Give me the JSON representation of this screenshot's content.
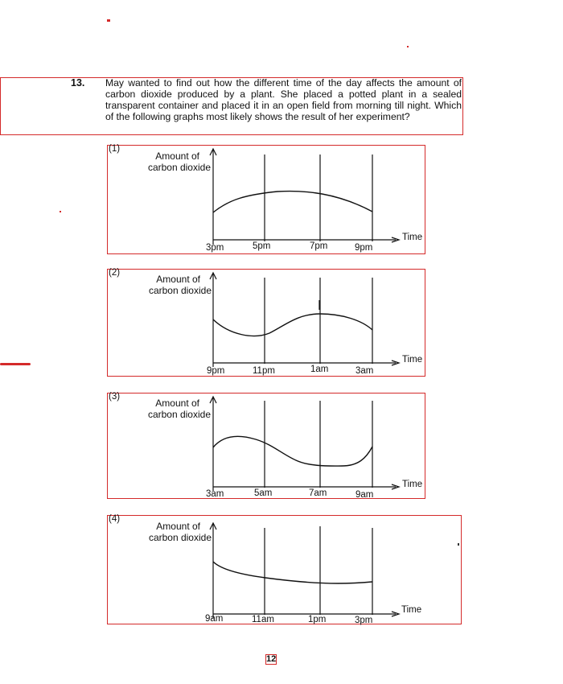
{
  "question": {
    "number": "13.",
    "text": "May wanted to find out how the different time of the day affects the amount of carbon dioxide produced by a plant. She placed a potted plant in a sealed transparent container and placed it in an open field from morning till night. Which of the following graphs most likely shows the result of her experiment?"
  },
  "options": [
    {
      "label": "(1)",
      "y_label_1": "Amount of",
      "y_label_2": "carbon dioxide",
      "x_label": "Time",
      "ticks": [
        "3pm",
        "5pm",
        "7pm",
        "9pm"
      ]
    },
    {
      "label": "(2)",
      "y_label_1": "Amount of",
      "y_label_2": "carbon dioxide",
      "x_label": "Time",
      "ticks": [
        "9pm",
        "11pm",
        "1am",
        "3am"
      ]
    },
    {
      "label": "(3)",
      "y_label_1": "Amount of",
      "y_label_2": "carbon dioxide",
      "x_label": "Time",
      "ticks": [
        "3am",
        "5am",
        "7am",
        "9am"
      ]
    },
    {
      "label": "(4)",
      "y_label_1": "Amount of",
      "y_label_2": "carbon dioxide",
      "x_label": "Time",
      "ticks": [
        "9am",
        "11am",
        "1pm",
        "3pm"
      ]
    }
  ],
  "page_number": "12",
  "colors": {
    "annotation_red": "#d42a2a",
    "ink": "#111111"
  }
}
